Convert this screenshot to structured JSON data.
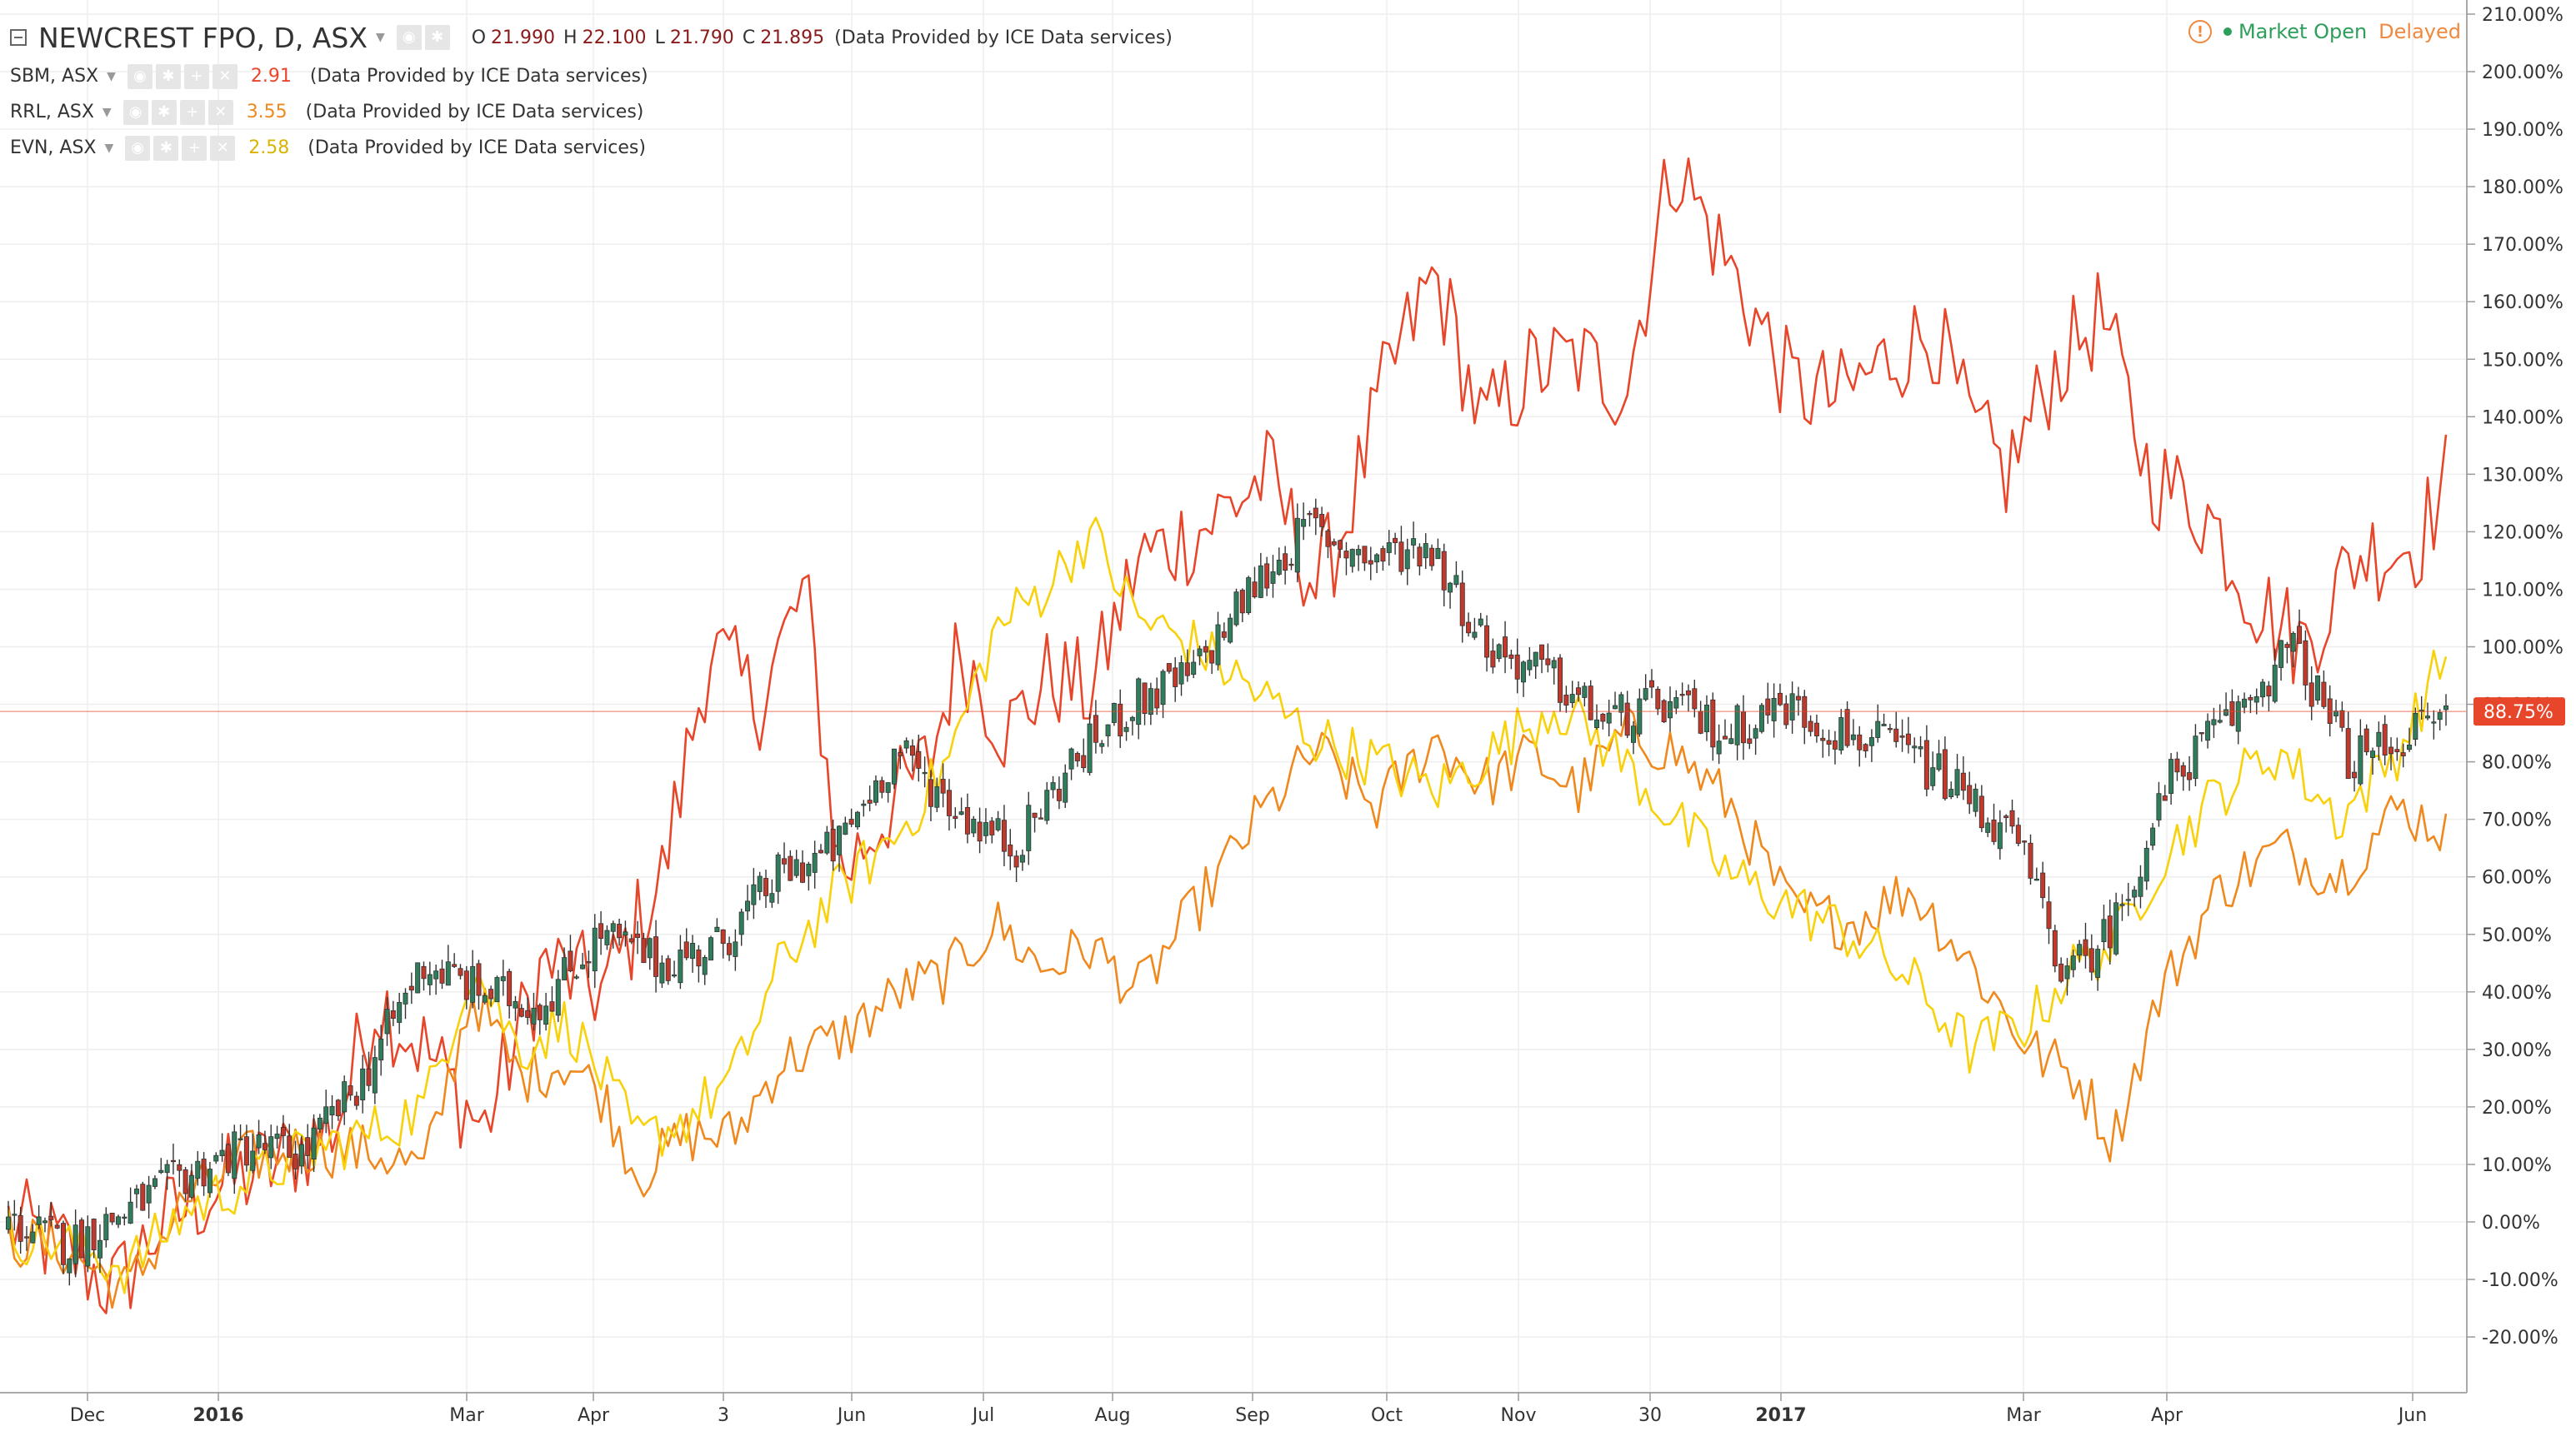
{
  "legend": {
    "main": {
      "title": "NEWCREST FPO, D, ASX",
      "o_label": "O",
      "o": "21.990",
      "h_label": "H",
      "h": "22.100",
      "l_label": "L",
      "l": "21.790",
      "c_label": "C",
      "c": "21.895",
      "provider": "(Data Provided by ICE Data services)"
    },
    "series": [
      {
        "symbol": "SBM, ASX",
        "value": "2.91",
        "provider": "(Data Provided by ICE Data services)",
        "color": "#e8462a"
      },
      {
        "symbol": "RRL, ASX",
        "value": "3.55",
        "provider": "(Data Provided by ICE Data services)",
        "color": "#f0891d"
      },
      {
        "symbol": "EVN, ASX",
        "value": "2.58",
        "provider": "(Data Provided by ICE Data services)",
        "color": "#f8d10a"
      }
    ]
  },
  "status": {
    "market": "Market Open",
    "delayed": "Delayed"
  },
  "colors": {
    "up": "#2f7d5b",
    "down": "#c0392b",
    "grid": "#eeeeee",
    "axis": "#999999",
    "text": "#333333"
  },
  "chart_data": {
    "type": "line",
    "x_ticks": [
      "Dec",
      "2016",
      "Mar",
      "Apr",
      "3",
      "Jun",
      "Jul",
      "Aug",
      "Sep",
      "Oct",
      "Nov",
      "30",
      "2017",
      "Mar",
      "Apr",
      "Jun"
    ],
    "x_bold": [
      "2016",
      "2017"
    ],
    "y_ticks": [
      "210.00%",
      "200.00%",
      "190.00%",
      "180.00%",
      "170.00%",
      "160.00%",
      "150.00%",
      "140.00%",
      "130.00%",
      "120.00%",
      "110.00%",
      "100.00%",
      "90.00%",
      "80.00%",
      "70.00%",
      "60.00%",
      "50.00%",
      "40.00%",
      "30.00%",
      "20.00%",
      "10.00%",
      "0.00%",
      "-10.00%",
      "-20.00%"
    ],
    "y_unit": "%",
    "y_range": [
      -24,
      211
    ],
    "last_value_label": "88.75%",
    "last_value": 88.75,
    "n_points": 400,
    "series": [
      {
        "name": "SBM, ASX",
        "color": "#e8462a",
        "anchors": [
          [
            0,
            0
          ],
          [
            10,
            -5
          ],
          [
            18,
            -12
          ],
          [
            25,
            -1
          ],
          [
            35,
            6
          ],
          [
            45,
            10
          ],
          [
            55,
            17
          ],
          [
            62,
            39
          ],
          [
            70,
            30
          ],
          [
            80,
            16
          ],
          [
            90,
            45
          ],
          [
            100,
            40
          ],
          [
            110,
            60
          ],
          [
            118,
            100
          ],
          [
            126,
            90
          ],
          [
            134,
            110
          ],
          [
            140,
            60
          ],
          [
            148,
            72
          ],
          [
            155,
            80
          ],
          [
            160,
            100
          ],
          [
            168,
            85
          ],
          [
            175,
            95
          ],
          [
            182,
            92
          ],
          [
            190,
            115
          ],
          [
            200,
            120
          ],
          [
            212,
            130
          ],
          [
            220,
            110
          ],
          [
            225,
            122
          ],
          [
            232,
            147
          ],
          [
            240,
            165
          ],
          [
            248,
            138
          ],
          [
            256,
            148
          ],
          [
            264,
            150
          ],
          [
            272,
            145
          ],
          [
            280,
            185
          ],
          [
            290,
            165
          ],
          [
            300,
            145
          ],
          [
            308,
            143
          ],
          [
            316,
            150
          ],
          [
            324,
            155
          ],
          [
            330,
            138
          ],
          [
            336,
            130
          ],
          [
            344,
            148
          ],
          [
            352,
            158
          ],
          [
            360,
            130
          ],
          [
            370,
            123
          ],
          [
            378,
            108
          ],
          [
            386,
            100
          ],
          [
            395,
            116
          ],
          [
            405,
            118
          ],
          [
            410,
            129
          ]
        ]
      },
      {
        "name": "RRL, ASX",
        "color": "#f0891d",
        "anchors": [
          [
            0,
            -3
          ],
          [
            10,
            -5
          ],
          [
            20,
            -12
          ],
          [
            30,
            4
          ],
          [
            40,
            11
          ],
          [
            50,
            13
          ],
          [
            62,
            12
          ],
          [
            70,
            9
          ],
          [
            78,
            40
          ],
          [
            86,
            25
          ],
          [
            94,
            28
          ],
          [
            100,
            22
          ],
          [
            106,
            8
          ],
          [
            114,
            15
          ],
          [
            122,
            15
          ],
          [
            130,
            28
          ],
          [
            140,
            32
          ],
          [
            150,
            40
          ],
          [
            158,
            43
          ],
          [
            166,
            52
          ],
          [
            174,
            44
          ],
          [
            182,
            48
          ],
          [
            190,
            40
          ],
          [
            200,
            55
          ],
          [
            210,
            70
          ],
          [
            220,
            82
          ],
          [
            230,
            72
          ],
          [
            240,
            84
          ],
          [
            248,
            76
          ],
          [
            256,
            81
          ],
          [
            264,
            75
          ],
          [
            272,
            85
          ],
          [
            280,
            82
          ],
          [
            290,
            72
          ],
          [
            300,
            54
          ],
          [
            310,
            52
          ],
          [
            320,
            58
          ],
          [
            330,
            45
          ],
          [
            340,
            30
          ],
          [
            348,
            25
          ],
          [
            354,
            14
          ],
          [
            362,
            40
          ],
          [
            372,
            58
          ],
          [
            382,
            65
          ],
          [
            392,
            60
          ],
          [
            402,
            72
          ],
          [
            410,
            68
          ]
        ]
      },
      {
        "name": "EVN, ASX",
        "color": "#f8d10a",
        "anchors": [
          [
            0,
            -2
          ],
          [
            10,
            -4
          ],
          [
            20,
            -8
          ],
          [
            30,
            2
          ],
          [
            40,
            7
          ],
          [
            50,
            12
          ],
          [
            60,
            15
          ],
          [
            70,
            20
          ],
          [
            78,
            45
          ],
          [
            86,
            30
          ],
          [
            94,
            35
          ],
          [
            100,
            25
          ],
          [
            106,
            14
          ],
          [
            114,
            18
          ],
          [
            122,
            25
          ],
          [
            130,
            45
          ],
          [
            140,
            58
          ],
          [
            150,
            68
          ],
          [
            158,
            80
          ],
          [
            166,
            103
          ],
          [
            174,
            110
          ],
          [
            182,
            120
          ],
          [
            190,
            105
          ],
          [
            200,
            100
          ],
          [
            210,
            92
          ],
          [
            220,
            84
          ],
          [
            230,
            80
          ],
          [
            240,
            75
          ],
          [
            250,
            82
          ],
          [
            260,
            90
          ],
          [
            270,
            82
          ],
          [
            280,
            70
          ],
          [
            290,
            60
          ],
          [
            300,
            55
          ],
          [
            310,
            50
          ],
          [
            320,
            42
          ],
          [
            330,
            30
          ],
          [
            340,
            35
          ],
          [
            348,
            45
          ],
          [
            354,
            48
          ],
          [
            362,
            63
          ],
          [
            372,
            75
          ],
          [
            382,
            82
          ],
          [
            392,
            70
          ],
          [
            402,
            82
          ],
          [
            410,
            99
          ]
        ]
      }
    ],
    "candles_anchors": [
      [
        0,
        0
      ],
      [
        10,
        -4
      ],
      [
        20,
        2
      ],
      [
        30,
        8
      ],
      [
        40,
        13
      ],
      [
        50,
        12
      ],
      [
        60,
        25
      ],
      [
        70,
        45
      ],
      [
        80,
        40
      ],
      [
        90,
        38
      ],
      [
        100,
        50
      ],
      [
        110,
        45
      ],
      [
        120,
        48
      ],
      [
        130,
        60
      ],
      [
        140,
        65
      ],
      [
        150,
        82
      ],
      [
        160,
        72
      ],
      [
        170,
        65
      ],
      [
        180,
        80
      ],
      [
        190,
        90
      ],
      [
        200,
        95
      ],
      [
        210,
        110
      ],
      [
        220,
        121
      ],
      [
        230,
        115
      ],
      [
        240,
        118
      ],
      [
        250,
        100
      ],
      [
        260,
        95
      ],
      [
        270,
        87
      ],
      [
        280,
        90
      ],
      [
        290,
        85
      ],
      [
        300,
        90
      ],
      [
        310,
        85
      ],
      [
        320,
        82
      ],
      [
        330,
        75
      ],
      [
        340,
        65
      ],
      [
        348,
        42
      ],
      [
        356,
        52
      ],
      [
        366,
        78
      ],
      [
        376,
        88
      ],
      [
        386,
        100
      ],
      [
        396,
        80
      ],
      [
        406,
        85
      ],
      [
        412,
        88.75
      ]
    ]
  }
}
